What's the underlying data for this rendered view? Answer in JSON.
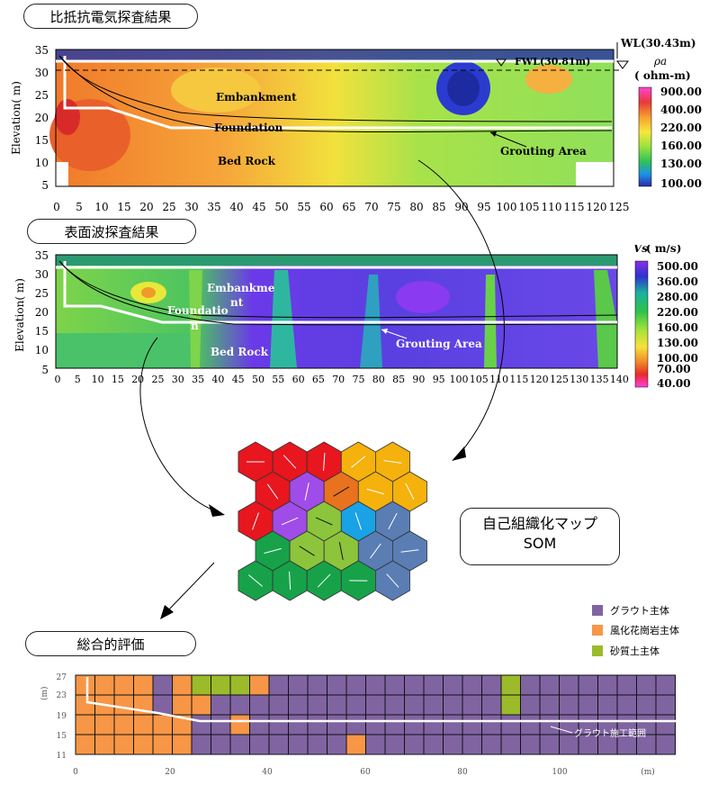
{
  "resistivity": {
    "title": "比抵抗電気探査結果",
    "ylabel": "Elevation( m)",
    "y_ticks": [
      "35",
      "30",
      "25",
      "20",
      "15",
      "10",
      "5"
    ],
    "x_ticks": [
      "0",
      "5",
      "10",
      "15",
      "20",
      "25",
      "30",
      "35",
      "40",
      "45",
      "50",
      "55",
      "60",
      "65",
      "70",
      "75",
      "80",
      "85",
      "90",
      "95",
      "100",
      "105",
      "110",
      "115",
      "120",
      "125"
    ],
    "labels": {
      "embankment": "Embankment",
      "foundation": "Foundation",
      "bedrock": "Bed Rock",
      "grouting": "Grouting Area",
      "fwl": "FWL(30.81m)",
      "wl": "WL(30.43m)"
    },
    "legend_symbol": "ρa",
    "legend_unit": "( ohm-m)",
    "legend_values": [
      "900.00",
      "400.00",
      "220.00",
      "160.00",
      "130.00",
      "100.00"
    ]
  },
  "surface_wave": {
    "title": "表面波探査結果",
    "ylabel": "Elevation( m)",
    "y_ticks": [
      "35",
      "30",
      "25",
      "20",
      "15",
      "10",
      "5"
    ],
    "x_ticks": [
      "0",
      "5",
      "10",
      "15",
      "20",
      "25",
      "30",
      "35",
      "40",
      "45",
      "50",
      "55",
      "60",
      "65",
      "70",
      "75",
      "80",
      "85",
      "90",
      "95",
      "100",
      "105",
      "110",
      "115",
      "120",
      "125",
      "130",
      "135",
      "140"
    ],
    "labels": {
      "embankment_1": "Embankme",
      "embankment_2": "nt",
      "foundation_1": "Foundatio",
      "foundation_2": "n",
      "bedrock": "Bed Rock",
      "grouting": "Grouting Area"
    },
    "legend_symbol": "Vs",
    "legend_unit": "( m/s)",
    "legend_values": [
      "500.00",
      "360.00",
      "280.00",
      "220.00",
      "160.00",
      "130.00",
      "100.00",
      "70.00",
      "40.00"
    ]
  },
  "som": {
    "label_line1": "自己組織化マップ",
    "label_line2": "SOM"
  },
  "overall": {
    "title": "総合的評価",
    "legend": [
      {
        "label": "グラウト主体",
        "color": "#8064a2"
      },
      {
        "label": "風化花崗岩主体",
        "color": "#f79646"
      },
      {
        "label": "砂質土主体",
        "color": "#9bbb2a"
      }
    ],
    "y_ticks": [
      "27",
      "23",
      "19",
      "15",
      "11"
    ],
    "ylabel": "(m)",
    "x_ticks": [
      "0",
      "20",
      "40",
      "60",
      "80",
      "100"
    ],
    "xunit": "(m)",
    "grout_label": "グラウト施工範囲"
  }
}
